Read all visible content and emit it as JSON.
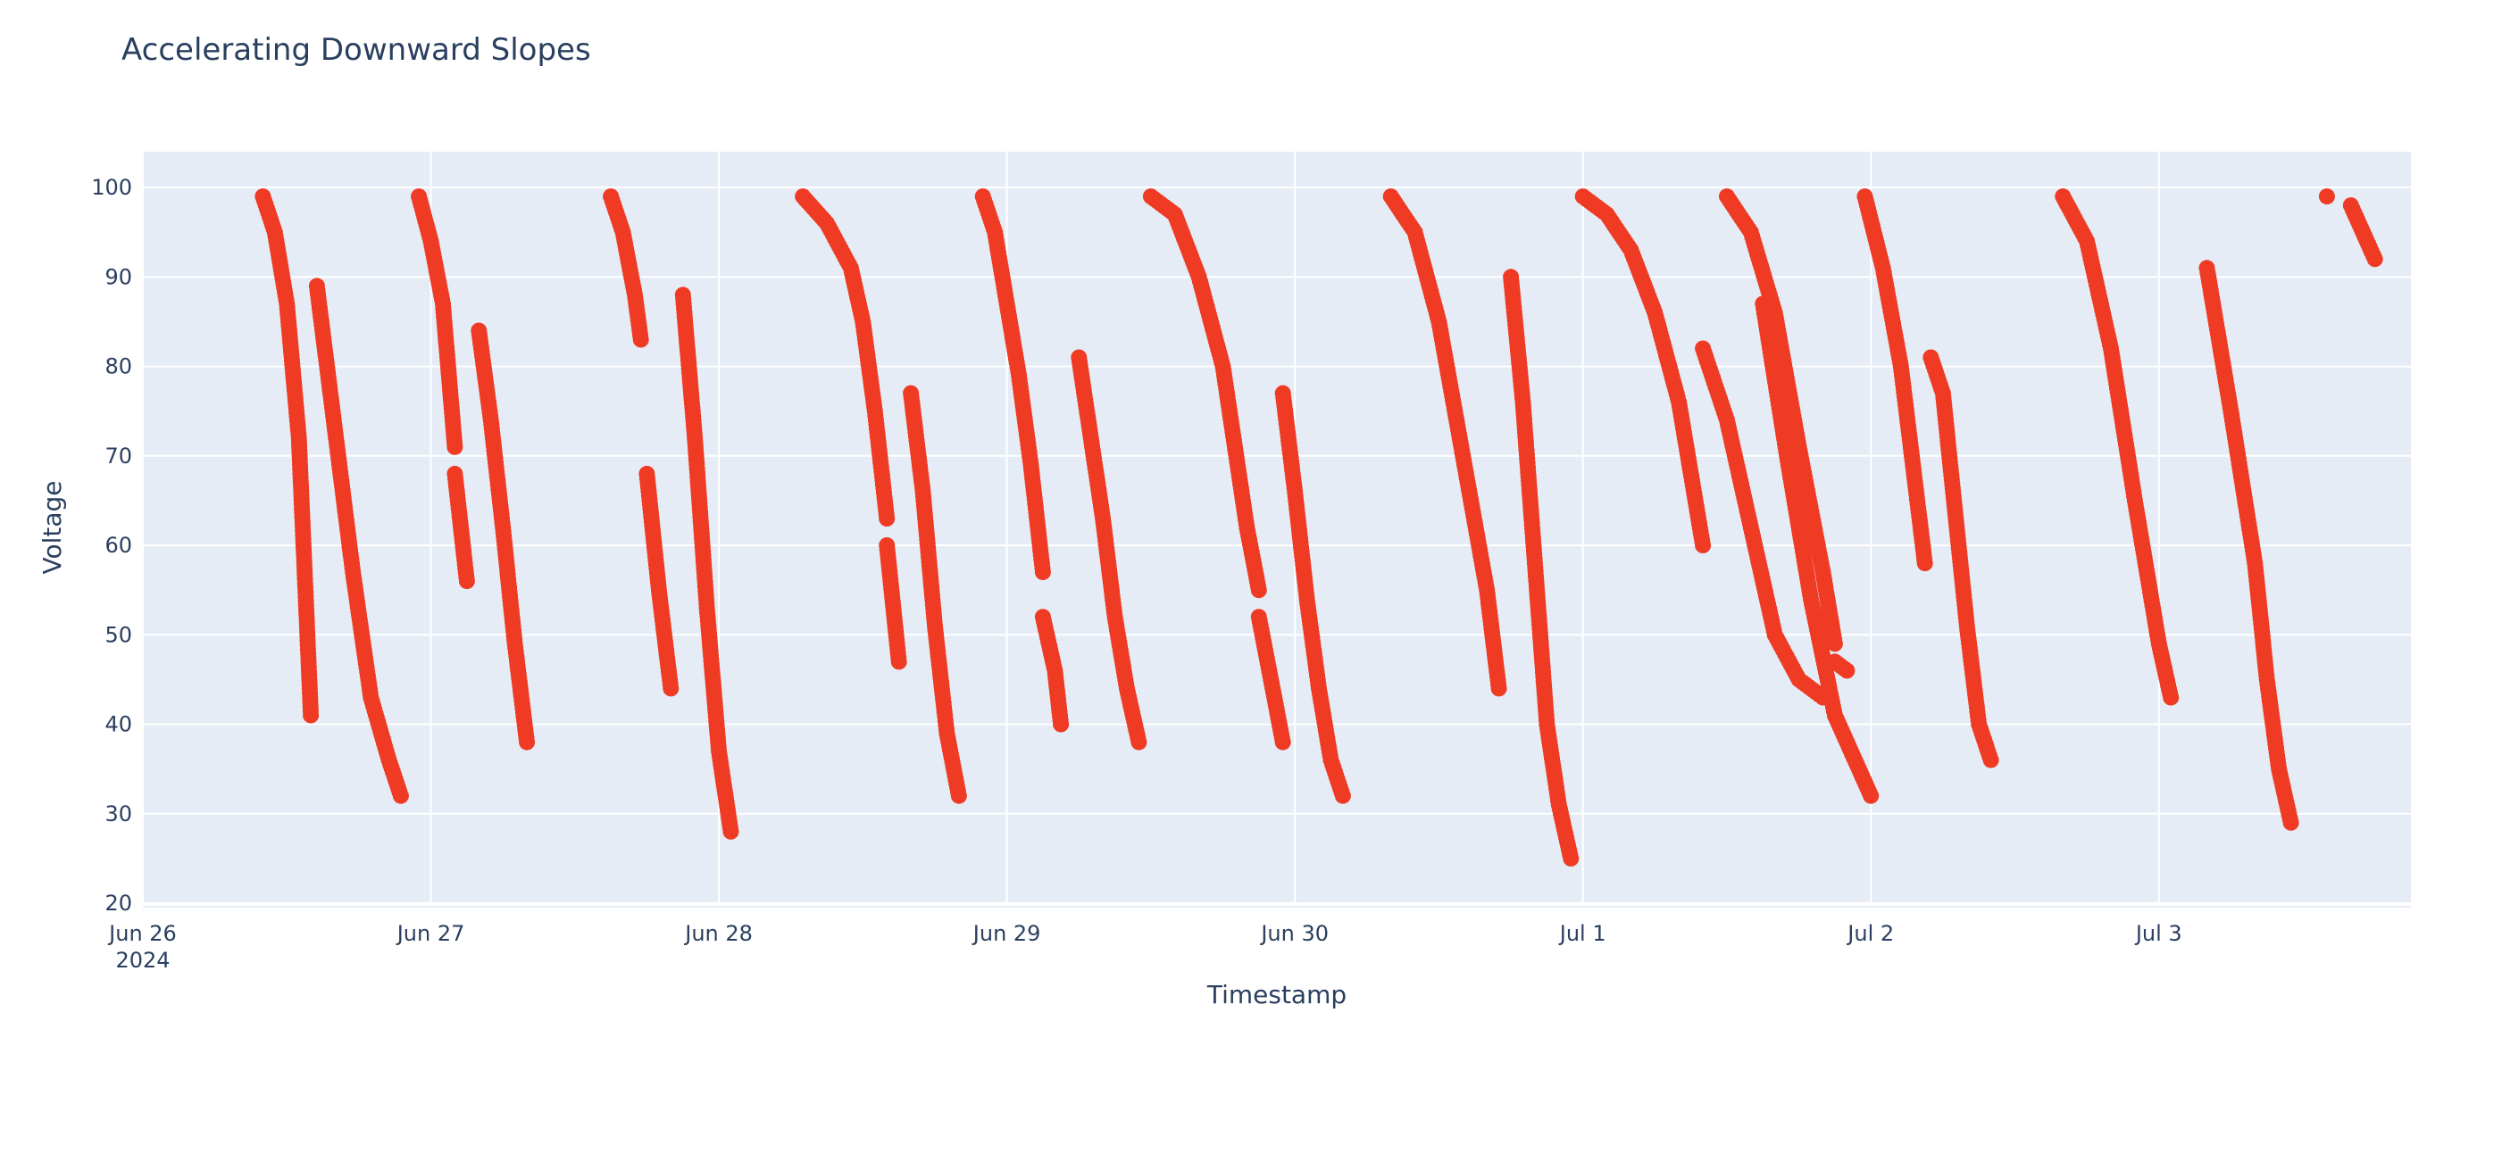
{
  "chart_data": {
    "type": "scatter",
    "title": "Accelerating Downward Slopes",
    "xlabel": "Timestamp",
    "ylabel": "Voltage",
    "x_range": [
      "2024-06-26T00:00",
      "2024-07-03T21:00"
    ],
    "ylim": [
      20,
      104
    ],
    "x_ticks": [
      {
        "date": "2024-06-26",
        "label": "Jun 26",
        "sublabel": "2024"
      },
      {
        "date": "2024-06-27",
        "label": "Jun 27"
      },
      {
        "date": "2024-06-28",
        "label": "Jun 28"
      },
      {
        "date": "2024-06-29",
        "label": "Jun 29"
      },
      {
        "date": "2024-06-30",
        "label": "Jun 30"
      },
      {
        "date": "2024-07-01",
        "label": "Jul 1"
      },
      {
        "date": "2024-07-02",
        "label": "Jul 2"
      },
      {
        "date": "2024-07-03",
        "label": "Jul 3"
      }
    ],
    "y_ticks": [
      20,
      30,
      40,
      50,
      60,
      70,
      80,
      90,
      100
    ],
    "grid": true,
    "marker_color": "#ef3a24",
    "plot_bg": "#e5ecf6",
    "segments": [
      {
        "x": [
          "2024-06-26T10:00",
          "2024-06-26T11:00",
          "2024-06-26T12:00",
          "2024-06-26T13:00",
          "2024-06-26T14:00"
        ],
        "y": [
          99,
          95,
          87,
          72,
          41
        ]
      },
      {
        "x": [
          "2024-06-26T14:30",
          "2024-06-26T16:00",
          "2024-06-26T17:30",
          "2024-06-26T19:00",
          "2024-06-26T20:30",
          "2024-06-26T21:30"
        ],
        "y": [
          89,
          73,
          57,
          43,
          36,
          32
        ]
      },
      {
        "x": [
          "2024-06-26T23:00",
          "2024-06-27T00:00",
          "2024-06-27T01:00",
          "2024-06-27T02:00"
        ],
        "y": [
          99,
          94,
          87,
          71
        ]
      },
      {
        "x": [
          "2024-06-27T02:00",
          "2024-06-27T03:00"
        ],
        "y": [
          68,
          56
        ]
      },
      {
        "x": [
          "2024-06-27T04:00",
          "2024-06-27T05:00",
          "2024-06-27T06:00",
          "2024-06-27T07:00",
          "2024-06-27T08:00"
        ],
        "y": [
          84,
          74,
          62,
          49,
          38
        ]
      },
      {
        "x": [
          "2024-06-27T15:00",
          "2024-06-27T16:00",
          "2024-06-27T17:00",
          "2024-06-27T17:30"
        ],
        "y": [
          99,
          95,
          88,
          83
        ]
      },
      {
        "x": [
          "2024-06-27T18:00",
          "2024-06-27T19:00",
          "2024-06-27T20:00"
        ],
        "y": [
          68,
          55,
          44
        ]
      },
      {
        "x": [
          "2024-06-27T21:00",
          "2024-06-27T22:00",
          "2024-06-27T23:00",
          "2024-06-28T00:00",
          "2024-06-28T01:00"
        ],
        "y": [
          88,
          72,
          53,
          37,
          28
        ]
      },
      {
        "x": [
          "2024-06-28T07:00",
          "2024-06-28T09:00",
          "2024-06-28T11:00",
          "2024-06-28T12:00",
          "2024-06-28T13:00",
          "2024-06-28T14:00"
        ],
        "y": [
          99,
          96,
          91,
          85,
          75,
          63
        ]
      },
      {
        "x": [
          "2024-06-28T14:00",
          "2024-06-28T15:00"
        ],
        "y": [
          60,
          47
        ]
      },
      {
        "x": [
          "2024-06-28T16:00",
          "2024-06-28T17:00",
          "2024-06-28T18:00",
          "2024-06-28T19:00",
          "2024-06-28T20:00"
        ],
        "y": [
          77,
          66,
          51,
          39,
          32
        ]
      },
      {
        "x": [
          "2024-06-28T22:00",
          "2024-06-28T23:00",
          "2024-06-29T00:00",
          "2024-06-29T01:00",
          "2024-06-29T02:00",
          "2024-06-29T03:00"
        ],
        "y": [
          99,
          95,
          87,
          79,
          69,
          57
        ]
      },
      {
        "x": [
          "2024-06-29T03:00",
          "2024-06-29T04:00",
          "2024-06-29T04:30"
        ],
        "y": [
          52,
          46,
          40
        ]
      },
      {
        "x": [
          "2024-06-29T06:00",
          "2024-06-29T07:00",
          "2024-06-29T08:00",
          "2024-06-29T09:00",
          "2024-06-29T10:00",
          "2024-06-29T11:00"
        ],
        "y": [
          81,
          72,
          63,
          52,
          44,
          38
        ]
      },
      {
        "x": [
          "2024-06-29T12:00",
          "2024-06-29T14:00",
          "2024-06-29T16:00",
          "2024-06-29T18:00",
          "2024-06-29T20:00",
          "2024-06-29T21:00"
        ],
        "y": [
          99,
          97,
          90,
          80,
          62,
          55
        ]
      },
      {
        "x": [
          "2024-06-29T21:00",
          "2024-06-29T22:00",
          "2024-06-29T23:00"
        ],
        "y": [
          52,
          45,
          38
        ]
      },
      {
        "x": [
          "2024-06-29T23:00",
          "2024-06-30T00:00",
          "2024-06-30T01:00",
          "2024-06-30T02:00",
          "2024-06-30T03:00",
          "2024-06-30T04:00"
        ],
        "y": [
          77,
          66,
          54,
          44,
          36,
          32
        ]
      },
      {
        "x": [
          "2024-06-30T08:00",
          "2024-06-30T10:00",
          "2024-06-30T12:00",
          "2024-06-30T14:00",
          "2024-06-30T16:00",
          "2024-06-30T17:00"
        ],
        "y": [
          99,
          95,
          85,
          70,
          55,
          44
        ]
      },
      {
        "x": [
          "2024-06-30T18:00",
          "2024-06-30T19:00",
          "2024-06-30T20:00",
          "2024-06-30T21:00",
          "2024-06-30T22:00",
          "2024-06-30T23:00"
        ],
        "y": [
          90,
          76,
          58,
          40,
          31,
          25
        ]
      },
      {
        "x": [
          "2024-07-01T00:00",
          "2024-07-01T02:00",
          "2024-07-01T04:00",
          "2024-07-01T06:00",
          "2024-07-01T08:00",
          "2024-07-01T10:00"
        ],
        "y": [
          99,
          97,
          93,
          86,
          76,
          60
        ]
      },
      {
        "x": [
          "2024-07-01T10:00",
          "2024-07-01T12:00",
          "2024-07-01T14:00",
          "2024-07-01T16:00",
          "2024-07-01T18:00",
          "2024-07-01T20:00"
        ],
        "y": [
          82,
          74,
          62,
          50,
          45,
          43
        ]
      },
      {
        "x": [
          "2024-07-01T12:00",
          "2024-07-01T14:00",
          "2024-07-01T16:00",
          "2024-07-01T18:00",
          "2024-07-01T20:00",
          "2024-07-01T21:00"
        ],
        "y": [
          99,
          95,
          86,
          71,
          57,
          49
        ]
      },
      {
        "x": [
          "2024-07-01T21:00",
          "2024-07-01T22:00"
        ],
        "y": [
          47,
          46
        ]
      },
      {
        "x": [
          "2024-07-01T15:00",
          "2024-07-01T17:00",
          "2024-07-01T19:00",
          "2024-07-01T21:00",
          "2024-07-01T23:00",
          "2024-07-02T00:00"
        ],
        "y": [
          87,
          70,
          54,
          41,
          35,
          32
        ]
      },
      {
        "x": [
          "2024-07-01T23:30",
          "2024-07-02T01:00",
          "2024-07-02T02:30",
          "2024-07-02T03:30",
          "2024-07-02T04:30"
        ],
        "y": [
          99,
          91,
          80,
          69,
          58
        ]
      },
      {
        "x": [
          "2024-07-02T05:00",
          "2024-07-02T06:00",
          "2024-07-02T07:00",
          "2024-07-02T08:00",
          "2024-07-02T09:00",
          "2024-07-02T10:00"
        ],
        "y": [
          81,
          77,
          64,
          51,
          40,
          36
        ]
      },
      {
        "x": [
          "2024-07-02T16:00",
          "2024-07-02T18:00",
          "2024-07-02T20:00",
          "2024-07-02T22:00",
          "2024-07-03T00:00",
          "2024-07-03T01:00"
        ],
        "y": [
          99,
          94,
          82,
          65,
          49,
          43
        ]
      },
      {
        "x": [
          "2024-07-03T04:00",
          "2024-07-03T06:00",
          "2024-07-03T08:00",
          "2024-07-03T09:00",
          "2024-07-03T10:00",
          "2024-07-03T11:00"
        ],
        "y": [
          91,
          75,
          58,
          45,
          35,
          29
        ]
      },
      {
        "x": [
          "2024-07-03T14:00"
        ],
        "y": [
          99
        ]
      },
      {
        "x": [
          "2024-07-03T16:00",
          "2024-07-03T17:00",
          "2024-07-03T18:00"
        ],
        "y": [
          98,
          95,
          92
        ]
      }
    ]
  }
}
